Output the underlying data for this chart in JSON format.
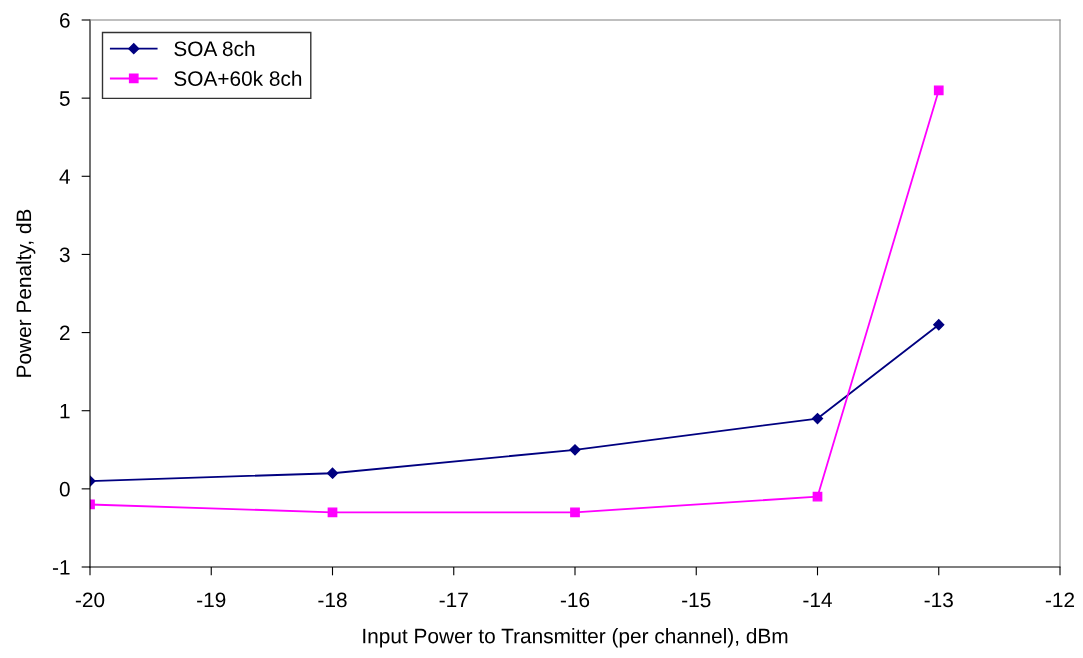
{
  "chart_data": {
    "type": "line",
    "xlabel": "Input Power to Transmitter (per channel), dBm",
    "ylabel": "Power Penalty, dB",
    "x": [
      -20,
      -18,
      -16,
      -14,
      -13
    ],
    "series": [
      {
        "name": "SOA 8ch",
        "color": "#000080",
        "marker": "diamond",
        "values": [
          0.1,
          0.2,
          0.5,
          0.9,
          2.1
        ]
      },
      {
        "name": "SOA+60k 8ch",
        "color": "#ff00ff",
        "marker": "square",
        "values": [
          -0.2,
          -0.3,
          -0.3,
          -0.1,
          5.1
        ]
      }
    ],
    "xlim": [
      -20,
      -12
    ],
    "xticks": [
      -20,
      -19,
      -18,
      -17,
      -16,
      -15,
      -14,
      -13,
      -12
    ],
    "ylim": [
      -1,
      6
    ],
    "yticks": [
      -1,
      0,
      1,
      2,
      3,
      4,
      5,
      6
    ],
    "grid": false,
    "legend": "top left",
    "line_style": "solid"
  }
}
